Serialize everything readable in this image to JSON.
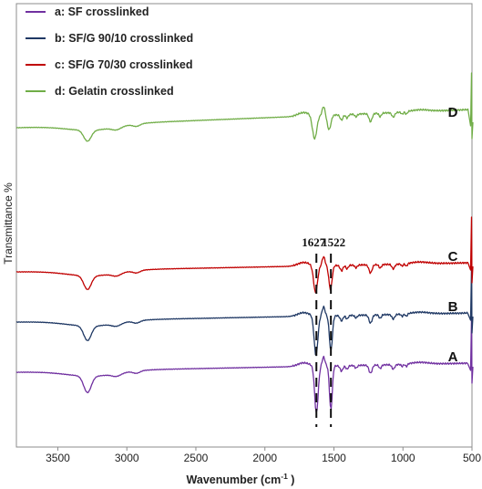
{
  "chart_data": {
    "type": "line",
    "xlabel": "Wavenumber (cm",
    "xlabel_sup": "-1",
    "xlabel_end": " )",
    "ylabel": "Transmittance %",
    "xlim": [
      3800,
      500
    ],
    "x_reversed": true,
    "xticks": [
      3500,
      3000,
      2500,
      2000,
      1500,
      1000,
      500
    ],
    "grid": false,
    "legend_position": "top-left",
    "series": [
      {
        "name": "a: SF crosslinked",
        "curve_label": "A",
        "color": "#7030a0",
        "offset": 408
      },
      {
        "name": "b: SF/G 90/10 crosslinked",
        "curve_label": "B",
        "color": "#1f3864",
        "offset": 353
      },
      {
        "name": "c: SF/G 70/30 crosslinked",
        "curve_label": "C",
        "color": "#c00000",
        "offset": 298
      },
      {
        "name": "d: Gelatin crosslinked",
        "curve_label": "D",
        "color": "#70ad47",
        "offset": 140
      }
    ],
    "annotations": [
      {
        "text": "1627",
        "x": 1627
      },
      {
        "text": "1522",
        "x": 1522
      }
    ]
  }
}
